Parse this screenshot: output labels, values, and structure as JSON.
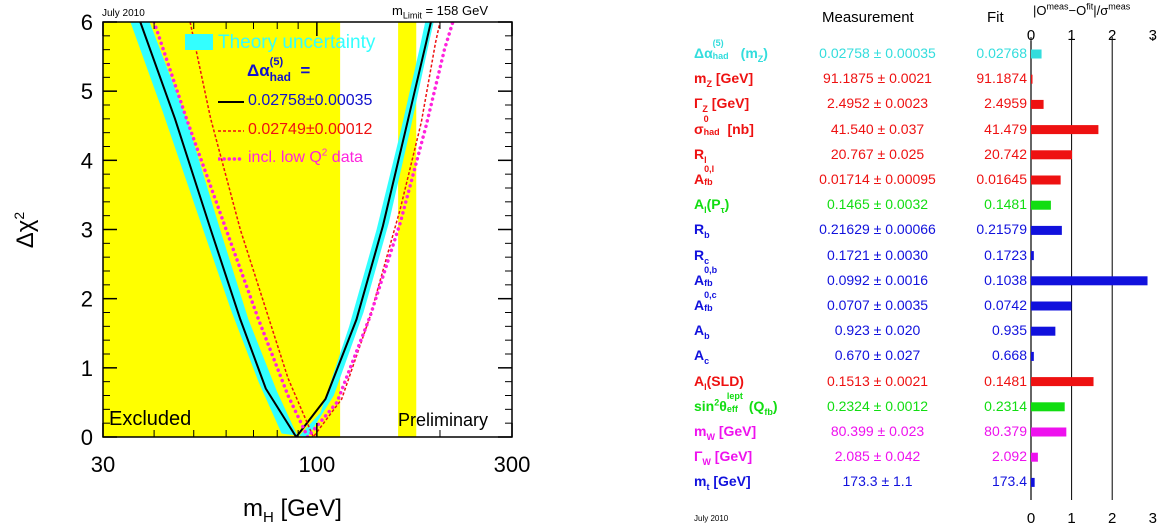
{
  "left_chart": {
    "date": "July 2010",
    "mlimit_prefix": "m",
    "mlimit_sub": "Limit",
    "mlimit_suffix": " = 158 GeV",
    "legend_theory": "Theory uncertainty",
    "legend_alpha_prefix": "Δα",
    "legend_alpha_sup": "(5)",
    "legend_alpha_sub": "had",
    "legend_alpha_suffix": " =",
    "legend_line1": "0.02758±0.00035",
    "legend_line2": "0.02749±0.00012",
    "legend_line3_prefix": "incl. low Q",
    "legend_line3_sup": "2",
    "legend_line3_suffix": " data",
    "excluded_label": "Excluded",
    "preliminary_label": "Preliminary",
    "ylabel_prefix": "Δχ",
    "ylabel_sup": "2",
    "xlabel_prefix": "m",
    "xlabel_sub": "H",
    "xlabel_suffix": " [GeV]",
    "colors": {
      "band": "#33ffff",
      "excluded": "#ffff00",
      "solid": "#000000",
      "dashed": "#ee1111",
      "dotted": "#ff22dd",
      "blue": "#1111cc"
    }
  },
  "chart_data": [
    {
      "type": "line",
      "xscale": "log",
      "xlim": [
        30,
        300
      ],
      "ylim": [
        0,
        6
      ],
      "xticks": [
        30,
        100,
        300
      ],
      "yticks": [
        0,
        1,
        2,
        3,
        4,
        5,
        6
      ],
      "excluded_regions": [
        [
          30,
          114
        ],
        [
          158,
          175
        ]
      ],
      "series": [
        {
          "name": "0.02758±0.00035",
          "style": "solid",
          "color": "#000000",
          "min_x": 89,
          "points": [
            [
              37,
              6
            ],
            [
              45,
              4.6
            ],
            [
              55,
              3.0
            ],
            [
              65,
              1.7
            ],
            [
              75,
              0.7
            ],
            [
              89,
              0
            ],
            [
              105,
              0.55
            ],
            [
              125,
              1.7
            ],
            [
              145,
              3.05
            ],
            [
              165,
              4.45
            ],
            [
              185,
              5.7
            ],
            [
              190,
              6
            ]
          ]
        },
        {
          "name": "0.02749±0.00012",
          "style": "dashed",
          "color": "#ee1111",
          "min_x": 98,
          "points": [
            [
              49,
              6
            ],
            [
              55,
              4.6
            ],
            [
              65,
              3.0
            ],
            [
              75,
              1.85
            ],
            [
              85,
              0.85
            ],
            [
              98,
              0
            ],
            [
              115,
              0.55
            ],
            [
              135,
              1.75
            ],
            [
              160,
              3.3
            ],
            [
              180,
              4.55
            ],
            [
              195,
              5.7
            ],
            [
              200,
              6
            ]
          ]
        },
        {
          "name": "incl. low Q2 data",
          "style": "dotted",
          "color": "#ff22dd",
          "min_x": 95,
          "points": [
            [
              40,
              6
            ],
            [
              48,
              4.6
            ],
            [
              60,
              3.0
            ],
            [
              72,
              1.7
            ],
            [
              85,
              0.6
            ],
            [
              95,
              0
            ],
            [
              112,
              0.5
            ],
            [
              135,
              1.75
            ],
            [
              160,
              3.1
            ],
            [
              185,
              4.5
            ],
            [
              205,
              5.6
            ],
            [
              215,
              6
            ]
          ]
        }
      ],
      "band": {
        "name": "Theory uncertainty",
        "color": "#33ffff",
        "upper": [
          [
            35,
            6
          ],
          [
            42,
            4.7
          ],
          [
            52,
            3.1
          ],
          [
            62,
            1.8
          ],
          [
            72,
            0.8
          ],
          [
            82,
            0.05
          ],
          [
            95,
            0
          ],
          [
            110,
            0.6
          ],
          [
            130,
            1.8
          ],
          [
            150,
            3.1
          ],
          [
            170,
            4.5
          ],
          [
            188,
            5.7
          ],
          [
            193,
            6
          ]
        ],
        "lower": [
          [
            39,
            6
          ],
          [
            48,
            4.6
          ],
          [
            58,
            3.0
          ],
          [
            68,
            1.7
          ],
          [
            80,
            0.65
          ],
          [
            90,
            0
          ],
          [
            102,
            0.35
          ],
          [
            120,
            1.6
          ],
          [
            140,
            3.0
          ],
          [
            160,
            4.4
          ],
          [
            178,
            5.6
          ],
          [
            184,
            6
          ]
        ]
      }
    },
    {
      "type": "bar",
      "orientation": "horizontal",
      "title": "|O^meas−O^fit|/σ^meas",
      "xlim": [
        0,
        3
      ],
      "xticks": [
        0,
        1,
        2,
        3
      ],
      "grid_x": [
        1,
        2
      ],
      "columns": {
        "measurement": "Measurement",
        "fit": "Fit"
      },
      "date": "July 2010",
      "rows": [
        {
          "name": "Δα(5)had(mZ)",
          "measurement": "0.02758 ± 0.00035",
          "fit": "0.02768",
          "pull": 0.26,
          "color": "#33dddd"
        },
        {
          "name": "mZ [GeV]",
          "measurement": "91.1875 ± 0.0021",
          "fit": "91.1874",
          "pull": 0.02,
          "color": "#ee1111"
        },
        {
          "name": "ΓZ [GeV]",
          "measurement": "2.4952 ± 0.0023",
          "fit": "2.4959",
          "pull": 0.31,
          "color": "#ee1111"
        },
        {
          "name": "σ0had [nb]",
          "measurement": "41.540 ± 0.037",
          "fit": "41.479",
          "pull": 1.66,
          "color": "#ee1111"
        },
        {
          "name": "Rl",
          "measurement": "20.767 ± 0.025",
          "fit": "20.742",
          "pull": 1.01,
          "color": "#ee1111"
        },
        {
          "name": "A0,l fb",
          "measurement": "0.01714 ± 0.00095",
          "fit": "0.01645",
          "pull": 0.73,
          "color": "#ee1111"
        },
        {
          "name": "Al(Pτ)",
          "measurement": "0.1465 ± 0.0032",
          "fit": "0.1481",
          "pull": 0.49,
          "color": "#11dd11"
        },
        {
          "name": "Rb",
          "measurement": "0.21629 ± 0.00066",
          "fit": "0.21579",
          "pull": 0.76,
          "color": "#1111dd"
        },
        {
          "name": "Rc",
          "measurement": "0.1721 ± 0.0030",
          "fit": "0.1723",
          "pull": 0.07,
          "color": "#1111dd"
        },
        {
          "name": "A0,b fb",
          "measurement": "0.0992 ± 0.0016",
          "fit": "0.1038",
          "pull": 2.87,
          "color": "#1111dd"
        },
        {
          "name": "A0,c fb",
          "measurement": "0.0707 ± 0.0035",
          "fit": "0.0742",
          "pull": 1.0,
          "color": "#1111dd"
        },
        {
          "name": "Ab",
          "measurement": "0.923 ± 0.020",
          "fit": "0.935",
          "pull": 0.6,
          "color": "#1111dd"
        },
        {
          "name": "Ac",
          "measurement": "0.670 ± 0.027",
          "fit": "0.668",
          "pull": 0.07,
          "color": "#1111dd"
        },
        {
          "name": "Al(SLD)",
          "measurement": "0.1513 ± 0.0021",
          "fit": "0.1481",
          "pull": 1.54,
          "color": "#ee1111"
        },
        {
          "name": "sin2θlept eff(Qfb)",
          "measurement": "0.2324 ± 0.0012",
          "fit": "0.2314",
          "pull": 0.83,
          "color": "#11dd11"
        },
        {
          "name": "mW [GeV]",
          "measurement": "80.399 ± 0.023",
          "fit": "80.379",
          "pull": 0.87,
          "color": "#ee11ee"
        },
        {
          "name": "ΓW [GeV]",
          "measurement": "2.085 ± 0.042",
          "fit": "2.092",
          "pull": 0.17,
          "color": "#ee11ee"
        },
        {
          "name": "mt [GeV]",
          "measurement": "173.3 ± 1.1",
          "fit": "173.4",
          "pull": 0.09,
          "color": "#1111dd"
        }
      ]
    }
  ]
}
